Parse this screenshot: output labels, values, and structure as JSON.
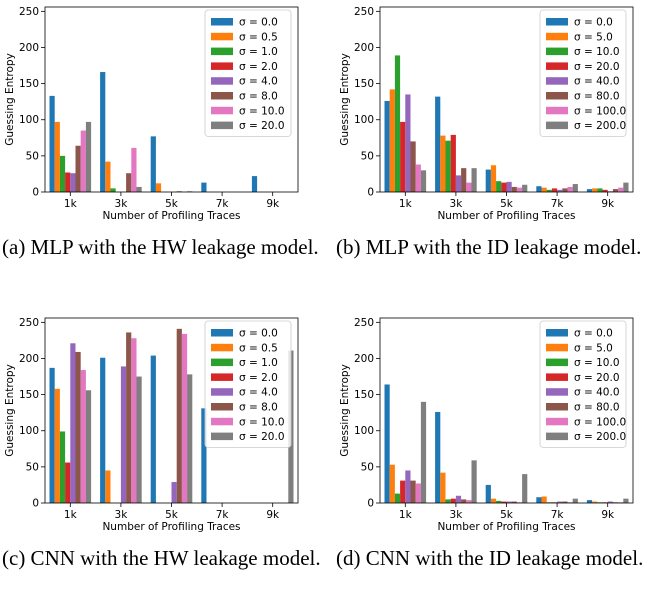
{
  "chart_data": [
    {
      "type": "bar",
      "caption": "(a) MLP with the HW leakage model.",
      "xlabel": "Number of Profiling Traces",
      "ylabel": "Guessing Entropy",
      "categories": [
        "1k",
        "3k",
        "5k",
        "7k",
        "9k"
      ],
      "ylim": [
        0,
        256
      ],
      "yticks": [
        0,
        50,
        100,
        150,
        200,
        250
      ],
      "legend": "top-right",
      "series": [
        {
          "name": "σ = 0.0",
          "values": [
            133,
            166,
            77,
            13,
            22
          ]
        },
        {
          "name": "σ = 0.5",
          "values": [
            97,
            42,
            12,
            0,
            0
          ]
        },
        {
          "name": "σ = 1.0",
          "values": [
            50,
            5,
            0,
            0,
            0
          ]
        },
        {
          "name": "σ = 2.0",
          "values": [
            27,
            0,
            0,
            0,
            0
          ]
        },
        {
          "name": "σ = 4.0",
          "values": [
            26,
            0,
            0,
            0,
            0
          ]
        },
        {
          "name": "σ = 8.0",
          "values": [
            64,
            26,
            1,
            0,
            0
          ]
        },
        {
          "name": "σ = 10.0",
          "values": [
            85,
            61,
            0,
            0,
            0
          ]
        },
        {
          "name": "σ = 20.0",
          "values": [
            97,
            7,
            1,
            0,
            0
          ]
        }
      ]
    },
    {
      "type": "bar",
      "caption": "(b) MLP with the ID leakage model.",
      "xlabel": "Number of Profiling Traces",
      "ylabel": "Guessing Entropy",
      "categories": [
        "1k",
        "3k",
        "5k",
        "7k",
        "9k"
      ],
      "ylim": [
        0,
        256
      ],
      "yticks": [
        0,
        50,
        100,
        150,
        200,
        250
      ],
      "legend": "top-right",
      "series": [
        {
          "name": "σ = 0.0",
          "values": [
            126,
            132,
            31,
            8,
            4
          ]
        },
        {
          "name": "σ = 5.0",
          "values": [
            142,
            78,
            37,
            6,
            5
          ]
        },
        {
          "name": "σ = 10.0",
          "values": [
            189,
            71,
            15,
            3,
            5
          ]
        },
        {
          "name": "σ = 20.0",
          "values": [
            97,
            79,
            13,
            5,
            3
          ]
        },
        {
          "name": "σ = 40.0",
          "values": [
            135,
            23,
            14,
            3,
            1
          ]
        },
        {
          "name": "σ = 80.0",
          "values": [
            70,
            33,
            7,
            5,
            4
          ]
        },
        {
          "name": "σ = 100.0",
          "values": [
            38,
            13,
            6,
            7,
            6
          ]
        },
        {
          "name": "σ = 200.0",
          "values": [
            30,
            33,
            10,
            11,
            13
          ]
        }
      ]
    },
    {
      "type": "bar",
      "caption": "(c) CNN with the HW leakage model.",
      "xlabel": "Number of Profiling Traces",
      "ylabel": "Guessing Entropy",
      "categories": [
        "1k",
        "3k",
        "5k",
        "7k",
        "9k"
      ],
      "ylim": [
        0,
        256
      ],
      "yticks": [
        0,
        50,
        100,
        150,
        200,
        250
      ],
      "legend": "top-right",
      "series": [
        {
          "name": "σ = 0.0",
          "values": [
            187,
            201,
            204,
            131,
            0
          ]
        },
        {
          "name": "σ = 0.5",
          "values": [
            158,
            45,
            0,
            0,
            0
          ]
        },
        {
          "name": "σ = 1.0",
          "values": [
            99,
            0,
            0,
            0,
            0
          ]
        },
        {
          "name": "σ = 2.0",
          "values": [
            56,
            0,
            0,
            0,
            0
          ]
        },
        {
          "name": "σ = 4.0",
          "values": [
            221,
            189,
            29,
            0,
            0
          ]
        },
        {
          "name": "σ = 8.0",
          "values": [
            209,
            236,
            241,
            0,
            0
          ]
        },
        {
          "name": "σ = 10.0",
          "values": [
            184,
            228,
            234,
            0,
            0
          ]
        },
        {
          "name": "σ = 20.0",
          "values": [
            156,
            175,
            178,
            0,
            211
          ]
        }
      ]
    },
    {
      "type": "bar",
      "caption": "(d) CNN with the ID leakage model.",
      "xlabel": "Number of Profiling Traces",
      "ylabel": "Guessing Entropy",
      "categories": [
        "1k",
        "3k",
        "5k",
        "7k",
        "9k"
      ],
      "ylim": [
        0,
        256
      ],
      "yticks": [
        0,
        50,
        100,
        150,
        200,
        250
      ],
      "legend": "top-right",
      "series": [
        {
          "name": "σ = 0.0",
          "values": [
            164,
            126,
            25,
            8,
            4
          ]
        },
        {
          "name": "σ = 5.0",
          "values": [
            53,
            42,
            6,
            9,
            2
          ]
        },
        {
          "name": "σ = 10.0",
          "values": [
            13,
            5,
            3,
            1,
            1
          ]
        },
        {
          "name": "σ = 20.0",
          "values": [
            31,
            6,
            2,
            1,
            1
          ]
        },
        {
          "name": "σ = 40.0",
          "values": [
            45,
            10,
            2,
            2,
            2
          ]
        },
        {
          "name": "σ = 80.0",
          "values": [
            31,
            5,
            2,
            2,
            1
          ]
        },
        {
          "name": "σ = 100.0",
          "values": [
            27,
            4,
            1,
            1,
            1
          ]
        },
        {
          "name": "σ = 200.0",
          "values": [
            140,
            59,
            40,
            6,
            6
          ]
        }
      ]
    }
  ],
  "colors": [
    "#1f77b4",
    "#ff7f0e",
    "#2ca02c",
    "#d62728",
    "#9467bd",
    "#8c564b",
    "#e377c2",
    "#7f7f7f"
  ]
}
